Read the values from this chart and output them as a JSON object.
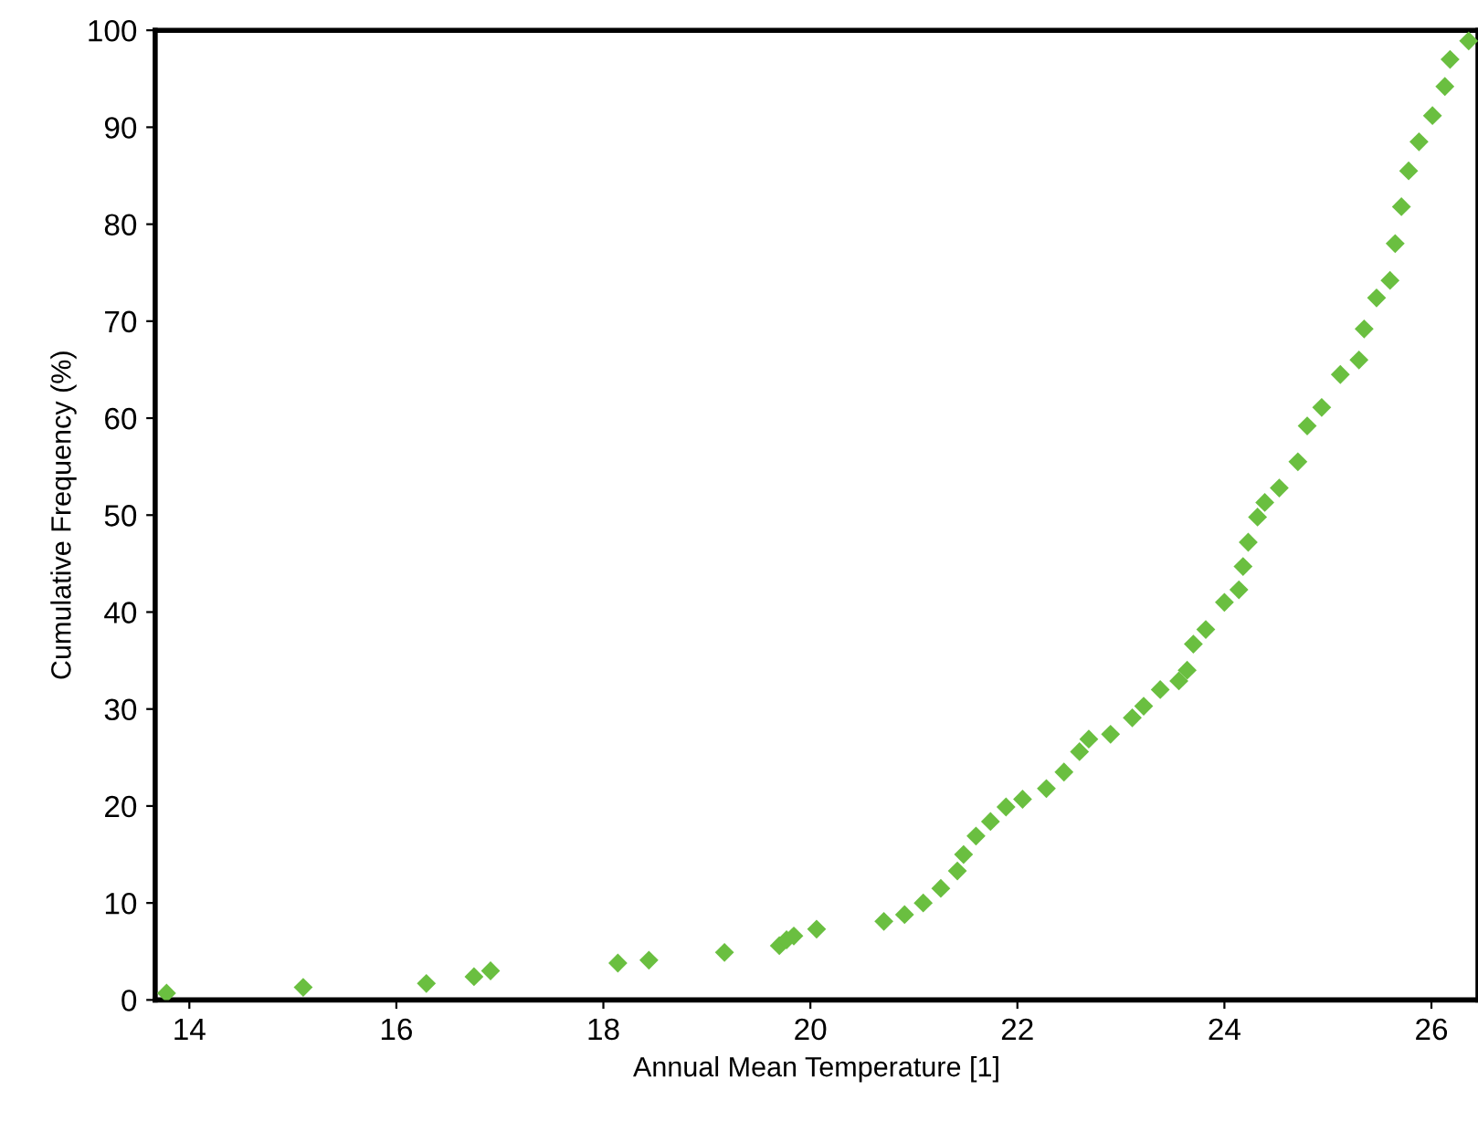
{
  "chart_data": {
    "type": "scatter",
    "xlabel": "Annual Mean Temperature [1]",
    "ylabel": "Cumulative Frequency (%)",
    "xlim": [
      13.67,
      26.45
    ],
    "xticks": [
      14,
      16,
      18,
      20,
      22,
      24,
      26
    ],
    "ylim": [
      0,
      100
    ],
    "yticks": [
      0,
      10,
      20,
      30,
      40,
      50,
      60,
      70,
      80,
      90,
      100
    ],
    "grid": false,
    "legend": false,
    "marker": "diamond",
    "series": [
      {
        "color": "#6abf40",
        "x": [
          13.78,
          15.1,
          16.29,
          16.75,
          16.91,
          18.14,
          18.44,
          19.17,
          19.7,
          19.77,
          19.84,
          20.06,
          20.71,
          20.91,
          21.09,
          21.26,
          21.42,
          21.48,
          21.6,
          21.74,
          21.89,
          22.05,
          22.28,
          22.45,
          22.6,
          22.69,
          22.9,
          23.11,
          23.22,
          23.38,
          23.56,
          23.64,
          23.7,
          23.82,
          24.0,
          24.14,
          24.18,
          24.23,
          24.32,
          24.39,
          24.53,
          24.71,
          24.8,
          24.94,
          25.12,
          25.3,
          25.35,
          25.47,
          25.6,
          25.65,
          25.71,
          25.78,
          25.88,
          26.01,
          26.13,
          26.18,
          26.36
        ],
        "values": [
          0.7,
          1.3,
          1.7,
          2.4,
          3.0,
          3.8,
          4.1,
          4.9,
          5.6,
          6.2,
          6.6,
          7.3,
          8.1,
          8.8,
          10.0,
          11.5,
          13.3,
          15.0,
          16.9,
          18.4,
          19.9,
          20.7,
          21.8,
          23.5,
          25.6,
          26.9,
          27.4,
          29.1,
          30.3,
          32.0,
          32.9,
          34.0,
          36.7,
          38.2,
          41.0,
          42.3,
          44.7,
          47.2,
          49.8,
          51.3,
          52.8,
          55.5,
          59.2,
          61.1,
          64.5,
          66.0,
          69.2,
          72.4,
          74.2,
          78.0,
          81.8,
          85.5,
          88.5,
          91.2,
          94.2,
          97.0,
          98.9
        ]
      }
    ]
  }
}
